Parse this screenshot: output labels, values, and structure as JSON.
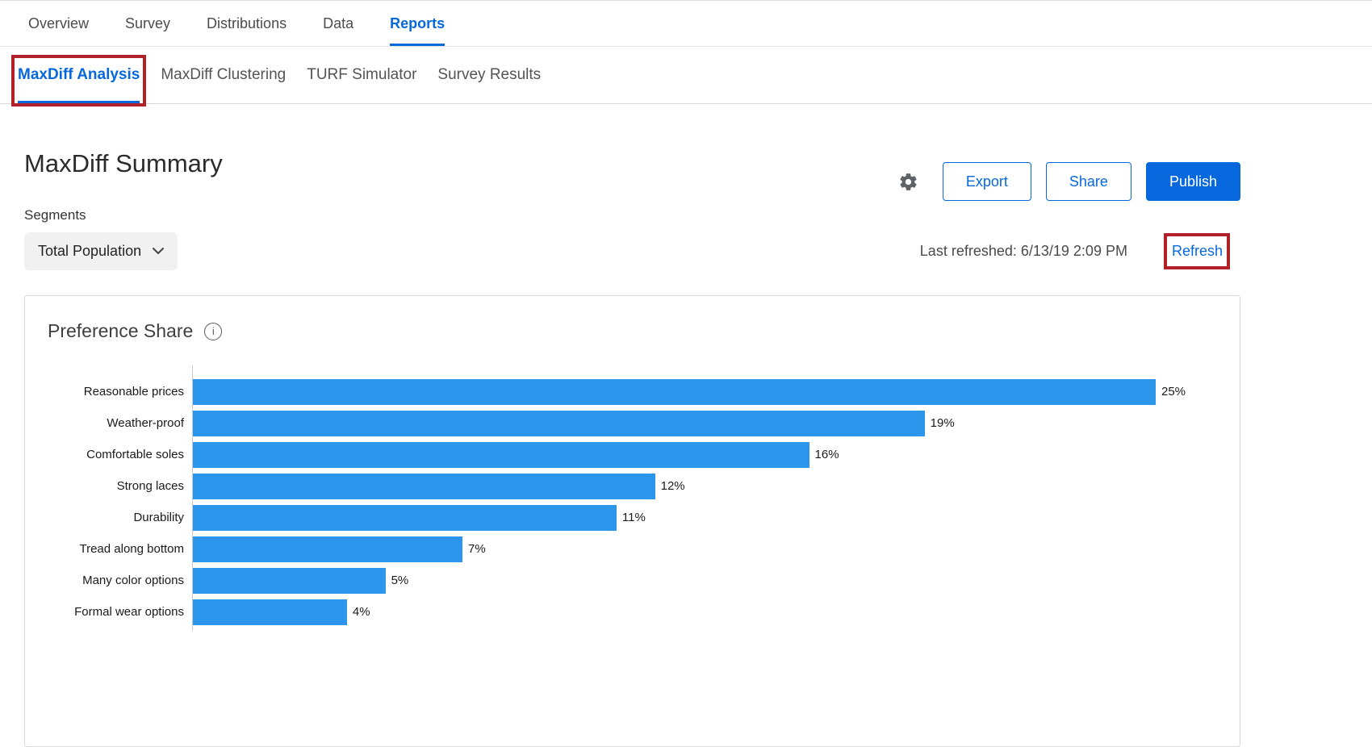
{
  "top_nav": {
    "items": [
      {
        "label": "Overview"
      },
      {
        "label": "Survey"
      },
      {
        "label": "Distributions"
      },
      {
        "label": "Data"
      },
      {
        "label": "Reports"
      }
    ],
    "active": "Reports"
  },
  "sub_nav": {
    "items": [
      {
        "label": "MaxDiff Analysis"
      },
      {
        "label": "MaxDiff Clustering"
      },
      {
        "label": "TURF Simulator"
      },
      {
        "label": "Survey Results"
      }
    ],
    "active": "MaxDiff Analysis"
  },
  "header": {
    "title": "MaxDiff Summary",
    "export_label": "Export",
    "share_label": "Share",
    "publish_label": "Publish"
  },
  "segments": {
    "label": "Segments",
    "selected_value": "Total Population"
  },
  "refresh_bar": {
    "last_refreshed": "Last refreshed: 6/13/19 2:09 PM",
    "refresh_label": "Refresh"
  },
  "chart_card": {
    "title": "Preference Share"
  },
  "chart_data": {
    "type": "bar",
    "orientation": "horizontal",
    "title": "Preference Share",
    "categories": [
      "Reasonable prices",
      "Weather-proof",
      "Comfortable soles",
      "Strong laces",
      "Durability",
      "Tread along bottom",
      "Many color options",
      "Formal wear options"
    ],
    "values": [
      25,
      19,
      16,
      12,
      11,
      7,
      5,
      4
    ],
    "value_suffix": "%",
    "xlim": [
      0,
      25
    ],
    "bar_color": "#2B96EC",
    "legend": "none",
    "grid": "off"
  },
  "colors": {
    "accent_blue": "#0768DD",
    "bar_blue": "#2B96EC",
    "annotation_red": "#B22028",
    "inactive_tab_gray": "#545454"
  }
}
